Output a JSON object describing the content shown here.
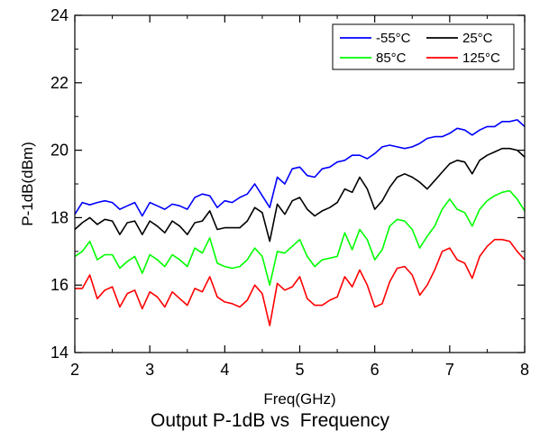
{
  "caption": "Output P-1dB vs  Frequency",
  "chart_data": {
    "type": "line",
    "title": "",
    "xlabel": "Freq(GHz)",
    "ylabel": "P-1dB(dBm)",
    "xlim": [
      2,
      8
    ],
    "ylim": [
      14,
      24
    ],
    "xticks": [
      2,
      3,
      4,
      5,
      6,
      7,
      8
    ],
    "yticks": [
      14,
      16,
      18,
      20,
      22,
      24
    ],
    "grid": false,
    "legend_position": "top-right",
    "x": [
      2.0,
      2.1,
      2.2,
      2.3,
      2.4,
      2.5,
      2.6,
      2.7,
      2.8,
      2.9,
      3.0,
      3.1,
      3.2,
      3.3,
      3.4,
      3.5,
      3.6,
      3.7,
      3.8,
      3.9,
      4.0,
      4.1,
      4.2,
      4.3,
      4.4,
      4.5,
      4.6,
      4.7,
      4.8,
      4.9,
      5.0,
      5.1,
      5.2,
      5.3,
      5.4,
      5.5,
      5.6,
      5.7,
      5.8,
      5.9,
      6.0,
      6.1,
      6.2,
      6.3,
      6.4,
      6.5,
      6.6,
      6.7,
      6.8,
      6.9,
      7.0,
      7.1,
      7.2,
      7.3,
      7.4,
      7.5,
      7.6,
      7.7,
      7.8,
      7.9,
      8.0
    ],
    "series": [
      {
        "name": "-55°C",
        "color": "#0000ff",
        "values": [
          18.1,
          18.45,
          18.38,
          18.45,
          18.5,
          18.45,
          18.25,
          18.35,
          18.45,
          18.05,
          18.45,
          18.35,
          18.25,
          18.4,
          18.35,
          18.25,
          18.6,
          18.7,
          18.65,
          18.3,
          18.5,
          18.45,
          18.6,
          18.7,
          19.0,
          18.65,
          18.3,
          19.2,
          19.0,
          19.45,
          19.5,
          19.25,
          19.2,
          19.45,
          19.5,
          19.65,
          19.7,
          19.85,
          19.85,
          19.75,
          19.9,
          20.1,
          20.15,
          20.1,
          20.05,
          20.1,
          20.2,
          20.35,
          20.4,
          20.4,
          20.5,
          20.65,
          20.6,
          20.45,
          20.6,
          20.7,
          20.7,
          20.85,
          20.85,
          20.9,
          20.7
        ]
      },
      {
        "name": "25°C",
        "color": "#000000",
        "values": [
          17.65,
          17.85,
          18.0,
          17.8,
          17.95,
          17.9,
          17.5,
          17.85,
          17.9,
          17.5,
          17.9,
          17.75,
          17.55,
          17.9,
          17.75,
          17.5,
          17.85,
          17.9,
          18.2,
          17.65,
          17.7,
          17.7,
          17.7,
          17.9,
          18.3,
          18.15,
          17.3,
          18.4,
          18.1,
          18.5,
          18.6,
          18.25,
          18.05,
          18.2,
          18.3,
          18.45,
          18.85,
          18.75,
          19.2,
          18.85,
          18.25,
          18.5,
          18.9,
          19.2,
          19.3,
          19.2,
          19.05,
          18.85,
          19.1,
          19.35,
          19.6,
          19.7,
          19.65,
          19.3,
          19.7,
          19.85,
          19.95,
          20.05,
          20.05,
          20.0,
          19.8
        ]
      },
      {
        "name": "85°C",
        "color": "#00ff00",
        "values": [
          16.85,
          17.0,
          17.3,
          16.75,
          16.9,
          16.9,
          16.5,
          16.7,
          16.85,
          16.35,
          16.9,
          16.75,
          16.55,
          16.9,
          16.75,
          16.55,
          17.1,
          16.95,
          17.4,
          16.65,
          16.55,
          16.5,
          16.55,
          16.75,
          17.1,
          16.85,
          16.0,
          17.0,
          16.95,
          17.15,
          17.35,
          16.85,
          16.55,
          16.75,
          16.8,
          16.85,
          17.55,
          17.05,
          17.65,
          17.35,
          16.75,
          17.05,
          17.75,
          17.95,
          17.9,
          17.65,
          17.1,
          17.45,
          17.75,
          18.25,
          18.55,
          18.25,
          18.15,
          17.75,
          18.25,
          18.5,
          18.65,
          18.75,
          18.8,
          18.55,
          18.2
        ]
      },
      {
        "name": "125°C",
        "color": "#ff0000",
        "values": [
          15.9,
          15.9,
          16.3,
          15.6,
          15.85,
          15.95,
          15.35,
          15.75,
          15.85,
          15.3,
          15.8,
          15.65,
          15.35,
          15.8,
          15.6,
          15.4,
          15.9,
          15.8,
          16.25,
          15.65,
          15.5,
          15.45,
          15.35,
          15.55,
          16.0,
          15.75,
          14.8,
          16.05,
          15.85,
          15.95,
          16.25,
          15.6,
          15.4,
          15.4,
          15.55,
          15.65,
          16.25,
          15.95,
          16.45,
          16.0,
          15.35,
          15.45,
          16.1,
          16.5,
          16.55,
          16.3,
          15.7,
          16.0,
          16.45,
          17.0,
          17.1,
          16.75,
          16.65,
          16.2,
          16.85,
          17.15,
          17.35,
          17.35,
          17.3,
          17.0,
          16.75
        ]
      }
    ]
  }
}
